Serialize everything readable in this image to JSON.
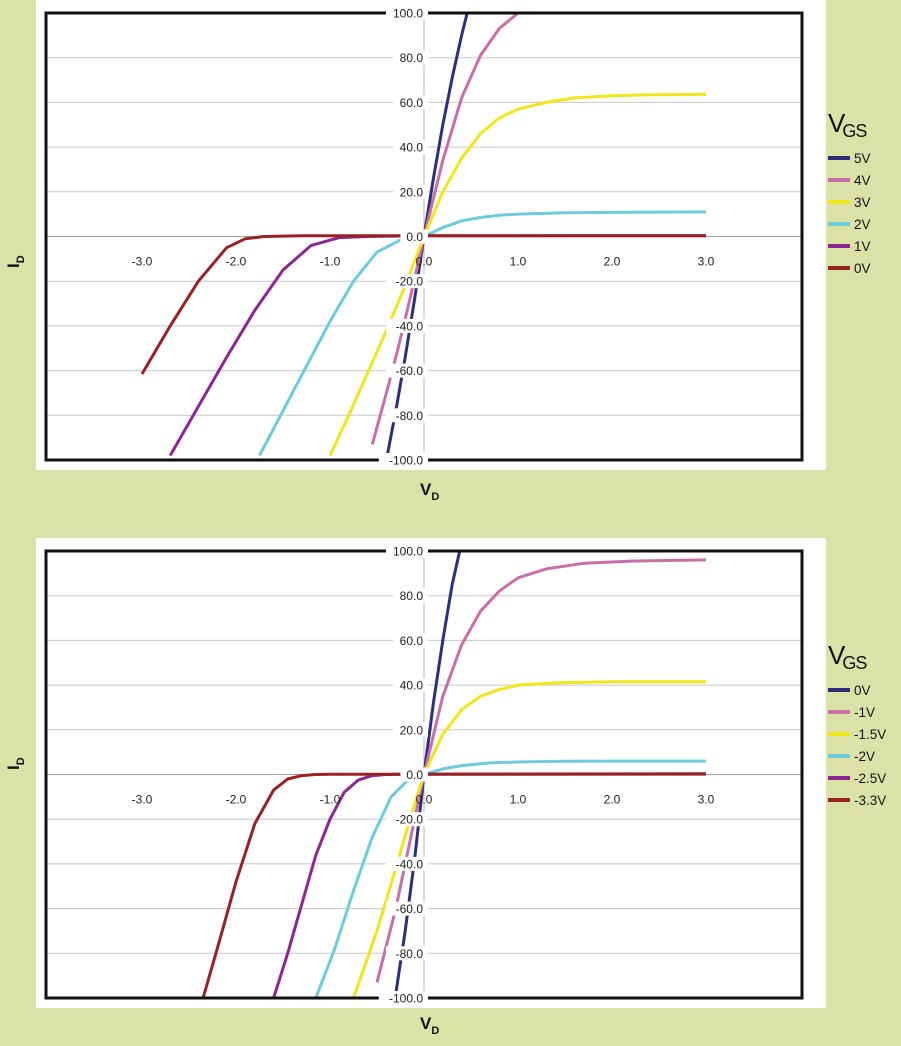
{
  "axis_labels": {
    "y_main": "I",
    "y_sub": "D",
    "x_main": "V",
    "x_sub": "D"
  },
  "legend_title": {
    "main": "V",
    "sub": "GS"
  },
  "chart_data": [
    {
      "type": "line",
      "xlim": [
        -3.0,
        3.0
      ],
      "ylim": [
        -100.0,
        100.0
      ],
      "x_ticks": [
        -3.0,
        -2.0,
        -1.0,
        0.0,
        1.0,
        2.0,
        3.0
      ],
      "x_tick_labels": [
        "-3.0",
        "-2.0",
        "-1.0",
        "0.0",
        "1.0",
        "2.0",
        "3.0"
      ],
      "y_ticks": [
        -100,
        -80,
        -60,
        -40,
        -20,
        0,
        20,
        40,
        60,
        80,
        100
      ],
      "y_tick_labels": [
        "-100.0",
        "-80.0",
        "-60.0",
        "-40.0",
        "-20.0",
        "0.0",
        "20.0",
        "40.0",
        "60.0",
        "80.0",
        "100.0"
      ],
      "grid": "horizontal",
      "legend_position": "right",
      "series": [
        {
          "name": "5V",
          "color": "#2b2f7e",
          "x": [
            -0.4,
            -0.3,
            -0.2,
            -0.1,
            0.0,
            0.1,
            0.2,
            0.3,
            0.4,
            0.46
          ],
          "y": [
            -100,
            -78,
            -54,
            -28,
            0,
            26,
            50,
            71,
            90,
            100
          ]
        },
        {
          "name": "4V",
          "color": "#c86ea9",
          "x": [
            -0.55,
            -0.4,
            -0.3,
            -0.2,
            -0.1,
            0.0,
            0.2,
            0.4,
            0.6,
            0.8,
            1.0
          ],
          "y": [
            -93,
            -70,
            -54,
            -37,
            -19,
            0,
            34,
            62,
            81,
            93,
            100
          ]
        },
        {
          "name": "3V",
          "color": "#f0e61c",
          "x": [
            -1.0,
            -0.8,
            -0.6,
            -0.4,
            -0.2,
            0.0,
            0.2,
            0.4,
            0.6,
            0.8,
            1.0,
            1.3,
            1.6,
            2.0,
            2.5,
            3.0
          ],
          "y": [
            -98,
            -80,
            -61,
            -42,
            -22,
            0,
            20,
            35,
            46,
            53,
            57,
            60,
            62,
            63,
            63.5,
            63.6
          ]
        },
        {
          "name": "2V",
          "color": "#6dcbdc",
          "x": [
            -1.75,
            -1.5,
            -1.25,
            -1.0,
            -0.75,
            -0.5,
            -0.25,
            0.0,
            0.2,
            0.4,
            0.6,
            0.8,
            1.0,
            1.5,
            2.0,
            3.0
          ],
          "y": [
            -98,
            -78,
            -58,
            -38,
            -20,
            -7,
            -1.5,
            0,
            4,
            7,
            8.5,
            9.5,
            10,
            10.6,
            10.8,
            11
          ]
        },
        {
          "name": "1V",
          "color": "#8e2691",
          "x": [
            -2.7,
            -2.4,
            -2.1,
            -1.8,
            -1.5,
            -1.2,
            -0.9,
            -0.6,
            -0.35,
            -0.15,
            0.0,
            3.0
          ],
          "y": [
            -98,
            -76,
            -54,
            -33,
            -15,
            -4,
            -0.5,
            0,
            0.2,
            0.3,
            0.3,
            0.4
          ]
        },
        {
          "name": "0V",
          "color": "#982223",
          "x": [
            -3.0,
            -2.7,
            -2.4,
            -2.1,
            -1.9,
            -1.7,
            -1.5,
            -1.3,
            -1.0,
            0.0,
            3.0
          ],
          "y": [
            -61.5,
            -40,
            -20,
            -5,
            -1,
            0,
            0.2,
            0.3,
            0.3,
            0.3,
            0.3
          ]
        }
      ]
    },
    {
      "type": "line",
      "xlim": [
        -3.0,
        3.0
      ],
      "ylim": [
        -100.0,
        100.0
      ],
      "x_ticks": [
        -3.0,
        -2.0,
        -1.0,
        0.0,
        1.0,
        2.0,
        3.0
      ],
      "x_tick_labels": [
        "-3.0",
        "-2.0",
        "-1.0",
        "0.0",
        "1.0",
        "2.0",
        "3.0"
      ],
      "y_ticks": [
        -100,
        -80,
        -60,
        -40,
        -20,
        0,
        20,
        40,
        60,
        80,
        100
      ],
      "y_tick_labels": [
        "-100.0",
        "-80.0",
        "-60.0",
        "-40.0",
        "-20.0",
        "0.0",
        "20.0",
        "40.0",
        "60.0",
        "80.0",
        "100.0"
      ],
      "grid": "horizontal",
      "legend_position": "right",
      "series": [
        {
          "name": "0V",
          "color": "#2b2f7e",
          "x": [
            -0.3,
            -0.2,
            -0.1,
            0.0,
            0.1,
            0.2,
            0.3,
            0.38
          ],
          "y": [
            -98,
            -70,
            -38,
            0,
            32,
            60,
            85,
            100
          ]
        },
        {
          "name": "-1V",
          "color": "#c86ea9",
          "x": [
            -0.5,
            -0.3,
            -0.15,
            0.0,
            0.2,
            0.4,
            0.6,
            0.8,
            1.0,
            1.3,
            1.7,
            2.2,
            3.0
          ],
          "y": [
            -93,
            -60,
            -30,
            0,
            35,
            58,
            73,
            82,
            88,
            92,
            94.5,
            95.5,
            96
          ]
        },
        {
          "name": "-1.5V",
          "color": "#f0e61c",
          "x": [
            -0.75,
            -0.5,
            -0.3,
            -0.15,
            0.0,
            0.2,
            0.4,
            0.6,
            0.8,
            1.0,
            1.4,
            2.0,
            3.0
          ],
          "y": [
            -100,
            -70,
            -42,
            -20,
            0,
            18,
            29,
            35,
            38,
            40,
            41,
            41.5,
            41.5
          ]
        },
        {
          "name": "-2V",
          "color": "#6dcbdc",
          "x": [
            -1.15,
            -0.95,
            -0.75,
            -0.55,
            -0.35,
            -0.15,
            0.0,
            0.2,
            0.4,
            0.7,
            1.0,
            1.5,
            2.0,
            3.0
          ],
          "y": [
            -100,
            -78,
            -52,
            -28,
            -10,
            -1.5,
            0,
            2.5,
            4,
            5.2,
            5.6,
            5.9,
            6,
            6
          ]
        },
        {
          "name": "-2.5V",
          "color": "#8e2691",
          "x": [
            -1.6,
            -1.45,
            -1.3,
            -1.15,
            -1.0,
            -0.85,
            -0.7,
            -0.55,
            -0.4,
            -0.2,
            0.0,
            3.0
          ],
          "y": [
            -100,
            -80,
            -58,
            -36,
            -20,
            -8,
            -2.5,
            -0.5,
            0,
            0.1,
            0.2,
            0.3
          ]
        },
        {
          "name": "-3.3V",
          "color": "#982223",
          "x": [
            -2.35,
            -2.2,
            -2.0,
            -1.8,
            -1.6,
            -1.45,
            -1.3,
            -1.15,
            -1.0,
            -0.5,
            0.0,
            3.0
          ],
          "y": [
            -100,
            -78,
            -48,
            -22,
            -7,
            -2,
            -0.5,
            0,
            0.1,
            0.1,
            0.1,
            0.2
          ]
        }
      ]
    }
  ]
}
